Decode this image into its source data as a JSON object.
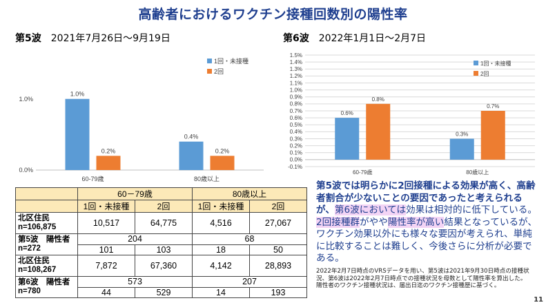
{
  "title": "高齢者におけるワクチン接種回数別の陽性率",
  "wave5": {
    "label": "第5波",
    "period": "2021年7月26日～9月19日"
  },
  "wave6": {
    "label": "第6波",
    "period": "2022年1月1日～2月7日"
  },
  "colors": {
    "dose1": "#5b9bd5",
    "dose2": "#ed7d31",
    "title": "#1f3f8f",
    "table_header": "#fce9b8",
    "highlight": "#f3d4f5"
  },
  "chart_data": [
    {
      "type": "bar",
      "categories": [
        "60-79歳",
        "80歳以上"
      ],
      "series": [
        {
          "name": "1回・未接種",
          "values": [
            1.0,
            0.4
          ]
        },
        {
          "name": "2回",
          "values": [
            0.2,
            0.2
          ]
        }
      ],
      "data_labels": [
        [
          "1.0%",
          "0.4%"
        ],
        [
          "0.2%",
          "0.2%"
        ]
      ],
      "yticks": [
        0.0,
        1.0
      ],
      "ytick_labels": [
        "0.0%",
        "1.0%"
      ],
      "ylim": [
        0.0,
        1.5
      ],
      "legend_position": "top-right",
      "grid": false
    },
    {
      "type": "bar",
      "categories": [
        "60-79歳",
        "80歳以上"
      ],
      "series": [
        {
          "name": "1回・未接種",
          "values": [
            0.6,
            0.3
          ]
        },
        {
          "name": "2回",
          "values": [
            0.8,
            0.7
          ]
        }
      ],
      "data_labels": [
        [
          "0.6%",
          "0.3%"
        ],
        [
          "0.8%",
          "0.7%"
        ]
      ],
      "yticks": [
        -0.1,
        0.0,
        0.1,
        0.2,
        0.3,
        0.4,
        0.5,
        0.6,
        0.7,
        0.8,
        0.9,
        1.0,
        1.1,
        1.2,
        1.3,
        1.4,
        1.5
      ],
      "ytick_labels": [
        "-0.1%",
        "0.0%",
        "0.1%",
        "0.2%",
        "0.3%",
        "0.4%",
        "0.5%",
        "0.6%",
        "0.7%",
        "0.8%",
        "0.9%",
        "1.0%",
        "1.1%",
        "1.2%",
        "1.3%",
        "1.4%",
        "1.5%"
      ],
      "ylim": [
        -0.1,
        1.5
      ],
      "legend_position": "top-right",
      "grid": true
    }
  ],
  "table": {
    "age1": "60－79歳",
    "age2": "80歳以上",
    "sub_dose1": "1回・未接種",
    "sub_dose2": "2回",
    "rows": [
      {
        "label1": "北区住民",
        "label2": "n=106,875",
        "values": [
          "10,517",
          "64,775",
          "4,516",
          "27,067"
        ]
      },
      {
        "label1": "第5波　陽性者",
        "label2": "n=272",
        "age_totals": [
          "204",
          "68"
        ],
        "values": [
          "101",
          "103",
          "18",
          "50"
        ]
      },
      {
        "label1": "北区住民",
        "label2": "n=108,267",
        "values": [
          "7,872",
          "67,360",
          "4,142",
          "28,893"
        ]
      },
      {
        "label1": "第6波　陽性者",
        "label2": "n=780",
        "age_totals": [
          "573",
          "207"
        ],
        "values": [
          "44",
          "529",
          "14",
          "193"
        ]
      }
    ]
  },
  "description": {
    "p1": "第5波では明らかに2回接種による効果が高く、高齢者割合が少ないことの要因であったと考えられる",
    "p2": "が、",
    "p3": "第6波においては",
    "p4": "効果は相対的に低下している。",
    "p5": "2回接種群",
    "p6": "がやや",
    "p7": "陽性率が高い",
    "p8": "結果となっているが、ワクチン効果以外にも様々な要因が考えられ、単純に比較することは難しく、今後さらに分析が必要である。"
  },
  "notes": [
    "2022年2月7日時点のVRSデータを用い、第5波は2021年9月30日時点の接種状況、第6波は2022年2月7日時点での接種状況を母数として陽性率を算出した。",
    "陽性者のワクチン接種状況は、届出日迄のワクチン接種歴に基づく。"
  ],
  "page_number": "11"
}
